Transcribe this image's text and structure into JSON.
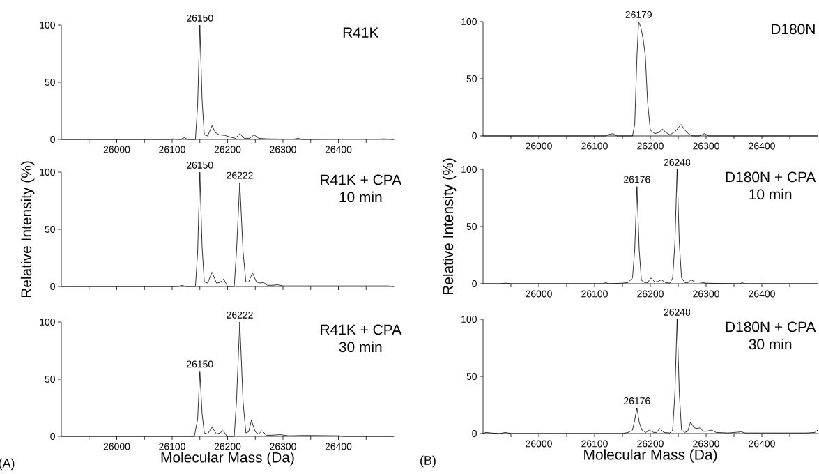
{
  "chart_data": [
    {
      "type": "line",
      "title": "R41K",
      "marker": "none",
      "xlim": [
        25900,
        26500
      ],
      "ylim": [
        0,
        100
      ],
      "xticks": [
        {
          "value": 25950,
          "label": null
        },
        26000,
        {
          "value": 26050,
          "label": null
        },
        26100,
        {
          "value": 26150,
          "label": null
        },
        26200,
        {
          "value": 26250,
          "label": null
        },
        26300,
        {
          "value": 26350,
          "label": null
        },
        26400,
        {
          "value": 26450,
          "label": null
        }
      ],
      "yticks": [
        0,
        50,
        100
      ],
      "series": [
        {
          "color": "#000000",
          "x": [
            25900,
            26095,
            26100,
            26115,
            26122,
            26128,
            26142,
            26146,
            26150,
            26154,
            26158,
            26164,
            26172,
            26178,
            26185,
            26195,
            26205,
            26214,
            26222,
            26230,
            26240,
            26248,
            26256,
            26270,
            26300,
            26320,
            26327,
            26335,
            26400,
            26475,
            26480,
            26490,
            26500
          ],
          "values": [
            0,
            0,
            0.5,
            0,
            1.5,
            0,
            0,
            30,
            100,
            35,
            4,
            3,
            12,
            6,
            4,
            3.5,
            2,
            1,
            5,
            1,
            1,
            4,
            1,
            0.5,
            0.3,
            0.3,
            1,
            0,
            0.3,
            0.3,
            0.5,
            0.3,
            0
          ]
        }
      ],
      "annotations": [
        {
          "text": "26150",
          "x": 26150,
          "y": 100
        }
      ]
    },
    {
      "type": "line",
      "title": "R41K + CPA",
      "subtitle": "10 min",
      "ylabel": "Relative Intensity (%)",
      "marker": "none",
      "xlim": [
        25900,
        26500
      ],
      "ylim": [
        0,
        100
      ],
      "xticks": [
        {
          "value": 25950,
          "label": null
        },
        {
          "value": 26000,
          "label": null
        },
        {
          "value": 26050,
          "label": null
        },
        {
          "value": 26100,
          "label": null
        },
        {
          "value": 26150,
          "label": null
        },
        {
          "value": 26200,
          "label": null
        },
        {
          "value": 26250,
          "label": null
        },
        {
          "value": 26300,
          "label": null
        },
        {
          "value": 26350,
          "label": null
        },
        {
          "value": 26400,
          "label": null
        },
        {
          "value": 26450,
          "label": null
        }
      ],
      "yticks": [
        0,
        50,
        100
      ],
      "tick_labels": "y",
      "series": [
        {
          "color": "#000000",
          "x": [
            25900,
            26110,
            26118,
            26125,
            26142,
            26146,
            26150,
            26154,
            26158,
            26164,
            26172,
            26180,
            26186,
            26193,
            26200,
            26212,
            26216,
            26222,
            26228,
            26233,
            26238,
            26245,
            26252,
            26258,
            26265,
            26272,
            26280,
            26290,
            26300,
            26350,
            26400,
            26480,
            26490,
            26500
          ],
          "values": [
            0,
            0,
            1,
            0,
            0,
            30,
            100,
            35,
            4,
            3,
            12.5,
            3,
            3.5,
            6.5,
            0,
            0,
            30,
            91,
            30,
            4,
            4,
            12,
            4,
            3,
            3.5,
            1,
            1,
            1.5,
            0.5,
            0.5,
            0.5,
            0.5,
            0.5,
            0
          ]
        }
      ],
      "annotations": [
        {
          "text": "26150",
          "x": 26150,
          "y": 100
        },
        {
          "text": "26222",
          "x": 26222,
          "y": 91
        }
      ]
    },
    {
      "type": "line",
      "title": "R41K + CPA",
      "subtitle": "30 min",
      "xlabel": "Molecular Mass (Da)",
      "marker": "none",
      "xlim": [
        25900,
        26500
      ],
      "ylim": [
        0,
        100
      ],
      "xticks": [
        {
          "value": 25950,
          "label": null
        },
        26000,
        {
          "value": 26050,
          "label": null
        },
        26100,
        {
          "value": 26150,
          "label": null
        },
        26200,
        {
          "value": 26250,
          "label": null
        },
        26300,
        {
          "value": 26350,
          "label": null
        },
        26400,
        {
          "value": 26450,
          "label": null
        }
      ],
      "yticks": [
        0,
        50,
        100
      ],
      "series": [
        {
          "color": "#000000",
          "x": [
            25900,
            26140,
            26146,
            26150,
            26154,
            26158,
            26164,
            26172,
            26180,
            26186,
            26192,
            26199,
            26212,
            26216,
            26222,
            26228,
            26233,
            26238,
            26243,
            26250,
            26256,
            26262,
            26270,
            26280,
            26295,
            26310,
            26340,
            26400,
            26410,
            26500
          ],
          "values": [
            0,
            0,
            15,
            57,
            20,
            3,
            2,
            8,
            2,
            3,
            5,
            0,
            0,
            30,
            100,
            30,
            3,
            4,
            14,
            4,
            2,
            5,
            1,
            1,
            1.5,
            0.5,
            0.8,
            0.5,
            0,
            0
          ]
        }
      ],
      "annotations": [
        {
          "text": "26150",
          "x": 26150,
          "y": 57
        },
        {
          "text": "26222",
          "x": 26222,
          "y": 100
        },
        "(A)"
      ]
    },
    {
      "type": "line",
      "title": "D180N",
      "marker": "none",
      "xlim": [
        25900,
        26500
      ],
      "ylim": [
        0,
        100
      ],
      "xticks": [
        {
          "value": 25950,
          "label": null
        },
        26000,
        {
          "value": 26050,
          "label": null
        },
        26100,
        {
          "value": 26150,
          "label": null
        },
        26200,
        {
          "value": 26250,
          "label": null
        },
        26300,
        {
          "value": 26350,
          "label": null
        },
        26400,
        {
          "value": 26450,
          "label": null
        }
      ],
      "yticks": [
        0,
        50,
        100
      ],
      "series": [
        {
          "color": "#000000",
          "x": [
            25900,
            26120,
            26127,
            26133,
            26140,
            26168,
            26172,
            26176,
            26179,
            26183,
            26187,
            26191,
            26195,
            26200,
            26208,
            26215,
            26222,
            26228,
            26235,
            26245,
            26255,
            26262,
            26268,
            26275,
            26288,
            26297,
            26305,
            26500
          ],
          "values": [
            0,
            0,
            1.5,
            2,
            0,
            0,
            10,
            70,
            100,
            95,
            85,
            70,
            30,
            5,
            2,
            3,
            6,
            3,
            1,
            4,
            10,
            5,
            2,
            0,
            0,
            2,
            0,
            0
          ]
        }
      ],
      "annotations": [
        {
          "text": "26179",
          "x": 26179,
          "y": 100
        }
      ]
    },
    {
      "type": "line",
      "title": "D180N + CPA",
      "subtitle": "10 min",
      "ylabel": "Relative Intensity (%)",
      "marker": "none",
      "xlim": [
        25900,
        26500
      ],
      "ylim": [
        0,
        100
      ],
      "xticks": [
        {
          "value": 25950,
          "label": null
        },
        26000,
        {
          "value": 26050,
          "label": null
        },
        26100,
        {
          "value": 26150,
          "label": null
        },
        26200,
        {
          "value": 26250,
          "label": null
        },
        26300,
        {
          "value": 26350,
          "label": null
        },
        26400,
        {
          "value": 26450,
          "label": null
        }
      ],
      "yticks": [
        0,
        50,
        100
      ],
      "series": [
        {
          "color": "#000000",
          "x": [
            25900,
            25930,
            25940,
            25950,
            26115,
            26120,
            26125,
            26150,
            26160,
            26168,
            26172,
            26176,
            26180,
            26184,
            26190,
            26195,
            26201,
            26208,
            26214,
            26220,
            26227,
            26235,
            26240,
            26244,
            26248,
            26252,
            26256,
            26262,
            26268,
            26273,
            26280,
            26287,
            26293,
            26300,
            26315,
            26360,
            26365,
            26370,
            26500
          ],
          "values": [
            0,
            0,
            0.5,
            0,
            0,
            1,
            0,
            0.5,
            1,
            5,
            30,
            85,
            30,
            3,
            1,
            1,
            5,
            1.5,
            2,
            3.5,
            1,
            0.5,
            5,
            35,
            100,
            35,
            5,
            1,
            1,
            3.5,
            1.5,
            1.5,
            1,
            0.5,
            0.3,
            0,
            0.8,
            0,
            0
          ]
        }
      ],
      "annotations": [
        {
          "text": "26176",
          "x": 26176,
          "y": 85
        },
        {
          "text": "26248",
          "x": 26248,
          "y": 100
        }
      ]
    },
    {
      "type": "line",
      "title": "D180N + CPA",
      "subtitle": "30 min",
      "xlabel": "Molecular Mass (Da)",
      "marker": "none",
      "xlim": [
        25900,
        26500
      ],
      "ylim": [
        0,
        100
      ],
      "xticks": [
        {
          "value": 25950,
          "label": null
        },
        26000,
        {
          "value": 26050,
          "label": null
        },
        26100,
        {
          "value": 26150,
          "label": null
        },
        26200,
        {
          "value": 26250,
          "label": null
        },
        26300,
        {
          "value": 26350,
          "label": null
        },
        26400,
        {
          "value": 26450,
          "label": null
        }
      ],
      "yticks": [
        0,
        50,
        100
      ],
      "series": [
        {
          "color": "#000000",
          "x": [
            25900,
            25905,
            25915,
            25930,
            25940,
            25950,
            26150,
            26160,
            26168,
            26172,
            26176,
            26180,
            26185,
            26192,
            26198,
            26206,
            26211,
            26217,
            26224,
            26235,
            26240,
            26244,
            26248,
            26252,
            26256,
            26262,
            26267,
            26272,
            26279,
            26284,
            26289,
            26295,
            26300,
            26310,
            26318,
            26340,
            26363,
            26370,
            26420,
            26480,
            26495,
            26500
          ],
          "values": [
            0,
            1,
            0.5,
            0,
            1,
            0,
            0,
            1,
            3,
            12,
            22.5,
            10,
            3,
            1,
            3,
            1,
            1,
            4.5,
            1,
            0.5,
            3,
            35,
            100,
            35,
            3,
            1,
            2,
            10,
            5,
            4.5,
            5,
            2,
            2,
            3,
            1,
            0.5,
            1.5,
            0.5,
            0.5,
            0.5,
            1,
            3
          ]
        }
      ],
      "annotations": [
        {
          "text": "26176",
          "x": 26176,
          "y": 22.5
        },
        {
          "text": "26248",
          "x": 26248,
          "y": 100
        },
        "(B)"
      ]
    }
  ]
}
